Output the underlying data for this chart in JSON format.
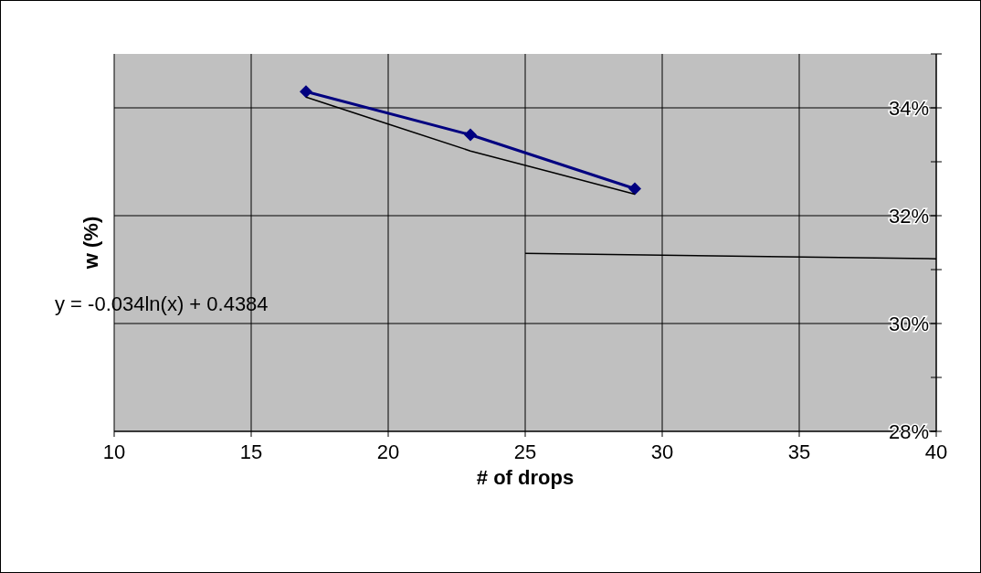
{
  "chart_data": {
    "type": "line",
    "xlabel": "# of drops",
    "ylabel": "w (%)",
    "xlim": [
      10,
      40
    ],
    "xticks": [
      10,
      15,
      20,
      25,
      30,
      35,
      40
    ],
    "ylim": [
      28,
      35
    ],
    "yticks": [
      {
        "value": 28,
        "label": "28%"
      },
      {
        "value": 29,
        "label": null
      },
      {
        "value": 30,
        "label": "30%"
      },
      {
        "value": 31,
        "label": null
      },
      {
        "value": 32,
        "label": "32%"
      },
      {
        "value": 33,
        "label": null
      },
      {
        "value": 34,
        "label": "34%"
      },
      {
        "value": 35,
        "label": null
      }
    ],
    "grid": true,
    "marker": "diamond",
    "line_style": "solid",
    "annotations": [
      "y = -0.034ln(x) + 0.4384"
    ],
    "series": [
      {
        "color": "#000080",
        "x": [
          17,
          23,
          29
        ],
        "values": [
          34.3,
          33.5,
          32.5
        ]
      },
      {
        "color": "#000000",
        "x": [
          17,
          20,
          23,
          26,
          29
        ],
        "values": [
          34.2,
          33.7,
          33.2,
          32.8,
          32.4
        ],
        "marker": "none"
      },
      {
        "color": "#000000",
        "x": [
          25,
          40
        ],
        "values": [
          31.3,
          31.2
        ],
        "marker": "none"
      }
    ]
  }
}
